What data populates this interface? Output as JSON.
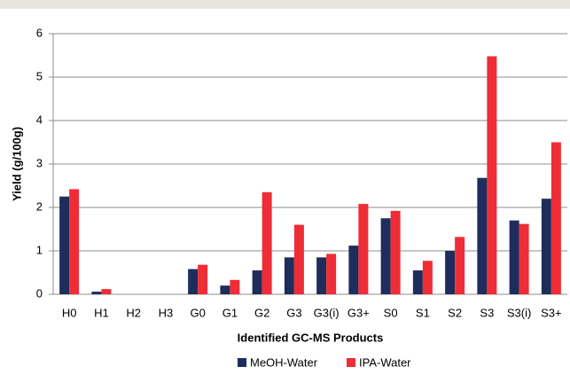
{
  "chart_data": {
    "type": "bar",
    "y_label": "Yield (g/100g)",
    "x_label": "Identified GC-MS Products",
    "categories": [
      "H0",
      "H1",
      "H2",
      "H3",
      "G0",
      "G1",
      "G2",
      "G3",
      "G3(i)",
      "G3+",
      "S0",
      "S1",
      "S2",
      "S3",
      "S3(i)",
      "S3+"
    ],
    "series": [
      {
        "name": "MeOH-Water",
        "color": "#1f2d5c",
        "values": [
          2.25,
          0.06,
          0,
          0,
          0.58,
          0.2,
          0.55,
          0.85,
          0.85,
          1.12,
          1.75,
          0.55,
          1.0,
          2.68,
          1.7,
          2.2
        ]
      },
      {
        "name": "IPA-Water",
        "color": "#ee2d36",
        "values": [
          2.42,
          0.12,
          0,
          0,
          0.68,
          0.33,
          2.35,
          1.6,
          0.93,
          2.08,
          1.92,
          0.77,
          1.32,
          5.48,
          1.62,
          3.5
        ]
      }
    ],
    "ylim": [
      0,
      6
    ],
    "yticks": [
      0,
      1,
      2,
      3,
      4,
      5,
      6
    ],
    "grid": true,
    "legend": "bottom"
  }
}
